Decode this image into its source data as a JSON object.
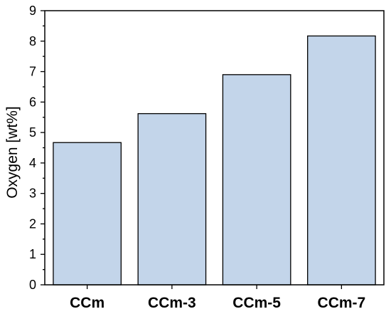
{
  "chart_data": {
    "type": "bar",
    "categories": [
      "CCm",
      "CCm-3",
      "CCm-5",
      "CCm-7"
    ],
    "values": [
      4.67,
      5.62,
      6.9,
      8.17
    ],
    "title": "",
    "xlabel": "",
    "ylabel": "Oxygen [wt%]",
    "ylim": [
      0,
      9
    ],
    "yticks": [
      0,
      1,
      2,
      3,
      4,
      5,
      6,
      7,
      8,
      9
    ],
    "grid": false,
    "bar_color": "#c3d5ea",
    "edge_color": "#000000"
  }
}
